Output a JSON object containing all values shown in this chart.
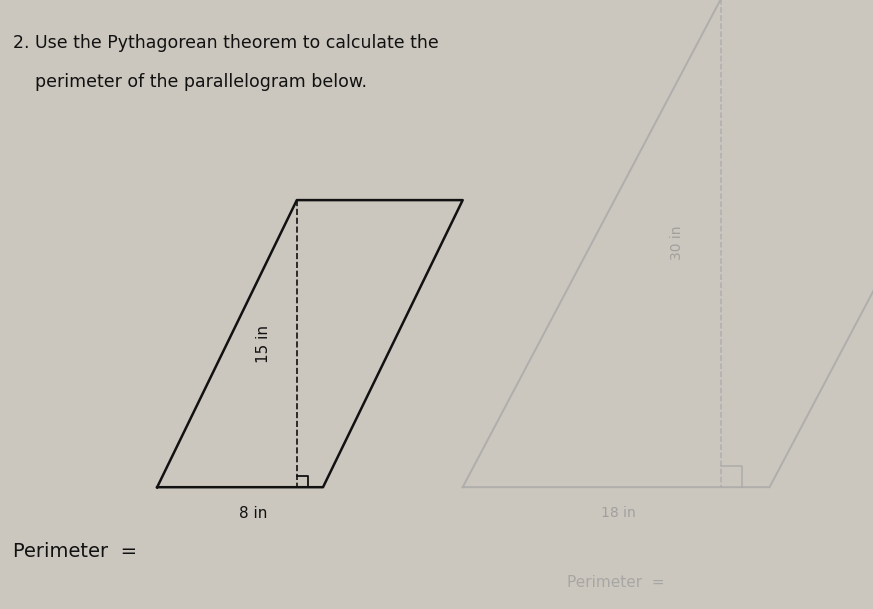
{
  "title_line1": "2. Use the Pythagorean theorem to calculate the",
  "title_line2": "    perimeter of the parallelogram below.",
  "bg_color": "#cbc7be",
  "label_height": "15 in",
  "label_base": "8 in",
  "label_height2": "30 in",
  "label_base2": "18 in",
  "perimeter_label": "Perimeter  =",
  "perimeter_label2": "Perimeter  =",
  "fig_width": 8.73,
  "fig_height": 6.09,
  "line_color": "#111111",
  "ghost_color": "#aaaaaa",
  "text_color": "#111111",
  "ghost_text_color": "#999999"
}
